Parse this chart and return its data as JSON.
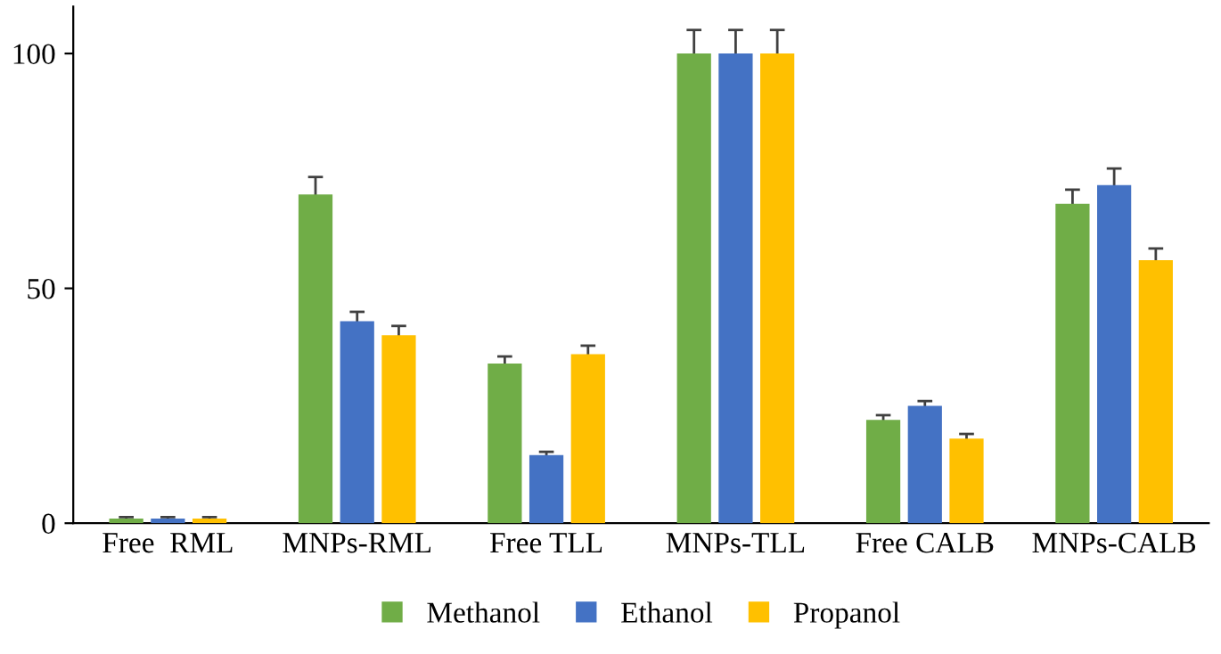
{
  "chart_data": {
    "type": "bar",
    "categories": [
      "Free  RML",
      "MNPs-RML",
      "Free TLL",
      "MNPs-TLL",
      "Free CALB",
      "MNPs-CALB"
    ],
    "series": [
      {
        "name": "Methanol",
        "color": "#70ad47",
        "values": [
          1,
          70,
          34,
          100,
          22,
          68
        ],
        "errors": [
          0.3,
          3.7,
          1.5,
          5,
          1,
          3
        ]
      },
      {
        "name": "Ethanol",
        "color": "#4472c4",
        "values": [
          1,
          43,
          14.5,
          100,
          25,
          72
        ],
        "errors": [
          0.3,
          2,
          0.7,
          5,
          1,
          3.5
        ]
      },
      {
        "name": "Propanol",
        "color": "#ffc000",
        "values": [
          1,
          40,
          36,
          100,
          18,
          56
        ],
        "errors": [
          0.3,
          2,
          1.8,
          5,
          1,
          2.5
        ]
      }
    ],
    "ylim": [
      0,
      110
    ],
    "yticks": [
      0,
      50,
      100
    ],
    "grid": false,
    "legend": "bottom"
  }
}
